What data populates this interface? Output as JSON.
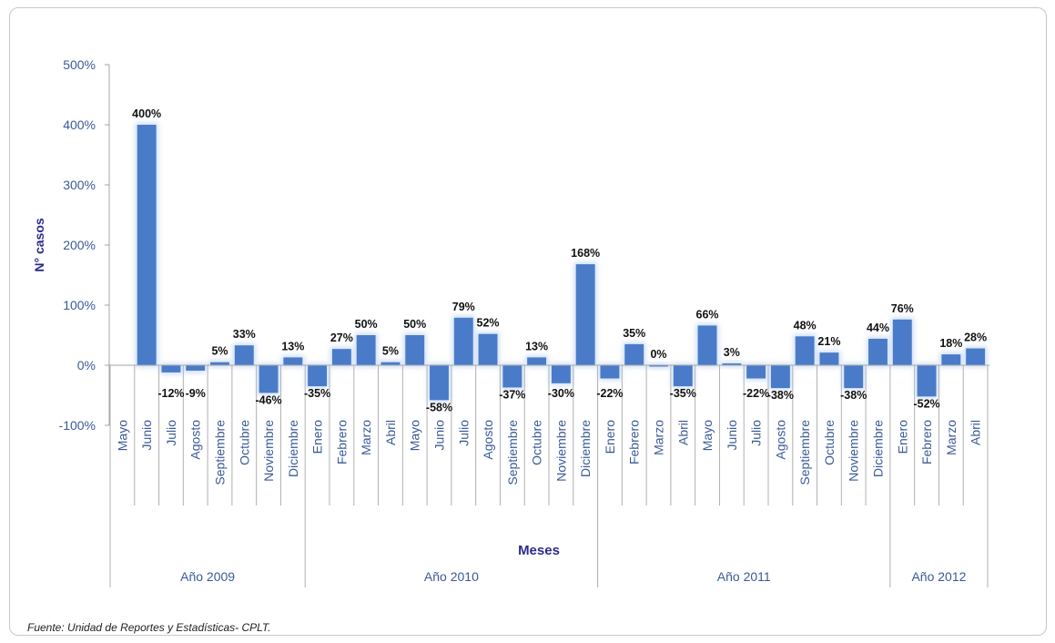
{
  "source": "Fuente: Unidad de Reportes y Estadísticas- CPLT.",
  "chart_data": {
    "type": "bar",
    "title": "",
    "ylabel": "N° casos",
    "xlabel": "Meses",
    "ylim": [
      -100,
      500
    ],
    "yticks": [
      "-100%",
      "0%",
      "100%",
      "200%",
      "300%",
      "400%",
      "500%"
    ],
    "ytick_values": [
      -100,
      0,
      100,
      200,
      300,
      400,
      500
    ],
    "grid": false,
    "bar_color": "#4a7bc8",
    "categories": [
      "Mayo",
      "Junio",
      "Julio",
      "Agosto",
      "Septiembre",
      "Octubre",
      "Noviembre",
      "Diciembre",
      "Enero",
      "Febrero",
      "Marzo",
      "Abril",
      "Mayo",
      "Junio",
      "Julio",
      "Agosto",
      "Septiembre",
      "Octubre",
      "Noviembre",
      "Diciembre",
      "Enero",
      "Febrero",
      "Marzo",
      "Abril",
      "Mayo",
      "Junio",
      "Julio",
      "Agosto",
      "Septiembre",
      "Octubre",
      "Noviembre",
      "Diciembre",
      "Enero",
      "Febrero",
      "Marzo",
      "Abril"
    ],
    "values": [
      null,
      400,
      -12,
      -9,
      5,
      33,
      -46,
      13,
      -35,
      27,
      50,
      5,
      50,
      -58,
      79,
      52,
      -37,
      13,
      -30,
      168,
      -22,
      35,
      0,
      -35,
      66,
      3,
      -22,
      -38,
      48,
      21,
      -38,
      44,
      76,
      -52,
      18,
      28
    ],
    "data_labels": [
      "",
      "400%",
      "-12%",
      "-9%",
      "5%",
      "33%",
      "-46%",
      "13%",
      "-35%",
      "27%",
      "50%",
      "5%",
      "50%",
      "-58%",
      "79%",
      "52%",
      "-37%",
      "13%",
      "-30%",
      "168%",
      "-22%",
      "35%",
      "0%",
      "-35%",
      "66%",
      "3%",
      "-22%",
      "-38%",
      "48%",
      "21%",
      "-38%",
      "44%",
      "76%",
      "-52%",
      "18%",
      "28%"
    ],
    "groups": [
      {
        "label": "Año 2009",
        "count": 8
      },
      {
        "label": "Año 2010",
        "count": 12
      },
      {
        "label": "Año 2011",
        "count": 12
      },
      {
        "label": "Año 2012",
        "count": 4
      }
    ]
  }
}
